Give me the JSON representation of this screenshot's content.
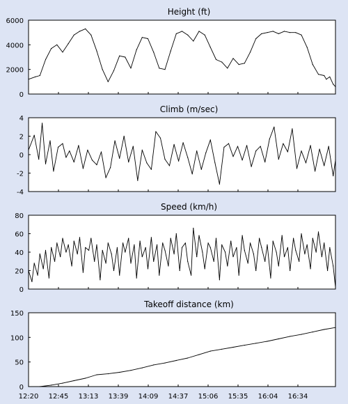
{
  "page": {
    "background": "#dde4f4",
    "plot_background": "#ffffff",
    "line_color": "#000000",
    "frame_color": "#000000"
  },
  "shared_x": {
    "ticks": [
      "12:20",
      "12:45",
      "13:13",
      "13:39",
      "14:09",
      "14:37",
      "15:06",
      "15:35",
      "16:04",
      "16:34"
    ],
    "range_minutes": [
      0,
      270
    ]
  },
  "chart_data": [
    {
      "type": "line",
      "title": "Height (ft)",
      "ylim": [
        0,
        6000
      ],
      "yticks": [
        0,
        2000,
        4000,
        6000
      ],
      "x": [
        0,
        6,
        10,
        15,
        20,
        25,
        30,
        35,
        40,
        45,
        50,
        55,
        60,
        65,
        70,
        75,
        80,
        85,
        90,
        95,
        100,
        105,
        110,
        115,
        120,
        125,
        130,
        135,
        140,
        145,
        150,
        155,
        160,
        165,
        170,
        175,
        180,
        185,
        190,
        195,
        200,
        205,
        210,
        215,
        220,
        225,
        230,
        235,
        240,
        245,
        250,
        255,
        260,
        262,
        265,
        268,
        270
      ],
      "y": [
        1200,
        1400,
        1500,
        2800,
        3700,
        4000,
        3400,
        4100,
        4800,
        5100,
        5300,
        4800,
        3500,
        2000,
        1000,
        1900,
        3100,
        3000,
        2100,
        3600,
        4600,
        4500,
        3400,
        2100,
        2000,
        3500,
        4900,
        5100,
        4800,
        4300,
        5100,
        4800,
        3800,
        2800,
        2600,
        2100,
        2900,
        2400,
        2500,
        3400,
        4500,
        4900,
        5000,
        5100,
        4900,
        5100,
        5000,
        5000,
        4800,
        3800,
        2400,
        1600,
        1500,
        1200,
        1400,
        800,
        600
      ]
    },
    {
      "type": "line",
      "title": "Climb (m/sec)",
      "ylim": [
        -4,
        4
      ],
      "yticks": [
        -4,
        -2,
        0,
        2,
        4
      ],
      "x": [
        0,
        5,
        9,
        12,
        15,
        19,
        22,
        26,
        30,
        33,
        36,
        40,
        44,
        48,
        52,
        56,
        60,
        64,
        68,
        72,
        76,
        80,
        84,
        88,
        92,
        96,
        100,
        104,
        108,
        112,
        116,
        120,
        124,
        128,
        132,
        136,
        140,
        144,
        148,
        152,
        156,
        160,
        164,
        168,
        172,
        176,
        180,
        184,
        188,
        192,
        196,
        200,
        204,
        208,
        212,
        216,
        220,
        224,
        228,
        232,
        236,
        240,
        244,
        248,
        252,
        256,
        260,
        264,
        268,
        270
      ],
      "y": [
        0.5,
        2.1,
        -0.5,
        3.4,
        -1.0,
        1.5,
        -1.8,
        0.8,
        1.2,
        -0.3,
        0.4,
        -0.8,
        1.0,
        -1.5,
        0.5,
        -0.6,
        -1.1,
        0.3,
        -2.5,
        -1.4,
        1.5,
        -0.4,
        2.0,
        -0.8,
        0.9,
        -2.8,
        0.5,
        -0.9,
        -1.6,
        2.5,
        1.8,
        -0.5,
        -1.2,
        1.1,
        -0.7,
        1.3,
        -0.3,
        -2.1,
        0.4,
        -1.6,
        0.2,
        1.6,
        -0.9,
        -3.2,
        0.8,
        1.2,
        -0.2,
        0.9,
        -0.6,
        1.0,
        -1.3,
        0.4,
        0.9,
        -0.8,
        1.7,
        3.0,
        -0.5,
        1.2,
        0.3,
        2.8,
        -1.5,
        0.4,
        -0.9,
        1.0,
        -1.8,
        0.6,
        -1.2,
        0.9,
        -2.3,
        -0.6
      ]
    },
    {
      "type": "line",
      "title": "Speed (km/h)",
      "ylim": [
        0,
        80
      ],
      "yticks": [
        0,
        20,
        40,
        60,
        80
      ],
      "x": [
        0,
        3,
        5,
        8,
        10,
        13,
        15,
        18,
        20,
        23,
        25,
        28,
        30,
        33,
        35,
        38,
        40,
        43,
        45,
        48,
        50,
        53,
        55,
        58,
        60,
        63,
        65,
        68,
        70,
        73,
        75,
        78,
        80,
        83,
        85,
        88,
        90,
        93,
        95,
        98,
        100,
        103,
        105,
        108,
        110,
        113,
        115,
        118,
        120,
        123,
        125,
        128,
        130,
        133,
        135,
        138,
        140,
        143,
        145,
        148,
        150,
        153,
        155,
        158,
        160,
        163,
        165,
        168,
        170,
        173,
        175,
        178,
        180,
        183,
        185,
        188,
        190,
        193,
        195,
        198,
        200,
        203,
        205,
        208,
        210,
        213,
        215,
        218,
        220,
        223,
        225,
        228,
        230,
        233,
        235,
        238,
        240,
        243,
        245,
        248,
        250,
        253,
        255,
        258,
        260,
        263,
        265,
        268,
        270
      ],
      "y": [
        20,
        8,
        28,
        15,
        38,
        22,
        42,
        12,
        45,
        30,
        50,
        35,
        55,
        40,
        48,
        25,
        52,
        38,
        56,
        18,
        45,
        42,
        55,
        30,
        48,
        10,
        42,
        28,
        50,
        38,
        20,
        45,
        15,
        50,
        40,
        55,
        28,
        48,
        12,
        52,
        35,
        45,
        22,
        56,
        30,
        48,
        15,
        50,
        42,
        25,
        55,
        38,
        60,
        20,
        45,
        50,
        30,
        15,
        66,
        35,
        58,
        40,
        22,
        50,
        45,
        30,
        55,
        10,
        48,
        40,
        25,
        52,
        35,
        45,
        15,
        58,
        42,
        28,
        50,
        38,
        20,
        55,
        45,
        30,
        48,
        12,
        52,
        40,
        25,
        58,
        35,
        45,
        20,
        55,
        42,
        30,
        60,
        38,
        48,
        22,
        55,
        40,
        62,
        35,
        50,
        20,
        45,
        25,
        2
      ]
    },
    {
      "type": "line",
      "title": "Takeoff distance (km)",
      "ylim": [
        0,
        150
      ],
      "yticks": [
        0,
        50,
        100,
        150
      ],
      "x": [
        0,
        10,
        20,
        30,
        40,
        50,
        60,
        70,
        80,
        90,
        100,
        110,
        120,
        130,
        140,
        150,
        160,
        170,
        180,
        190,
        200,
        210,
        220,
        230,
        240,
        250,
        260,
        270
      ],
      "y": [
        0,
        0,
        3,
        7,
        12,
        17,
        24,
        26,
        29,
        33,
        38,
        44,
        48,
        53,
        58,
        65,
        72,
        76,
        80,
        84,
        88,
        92,
        97,
        102,
        106,
        111,
        116,
        120
      ]
    }
  ]
}
